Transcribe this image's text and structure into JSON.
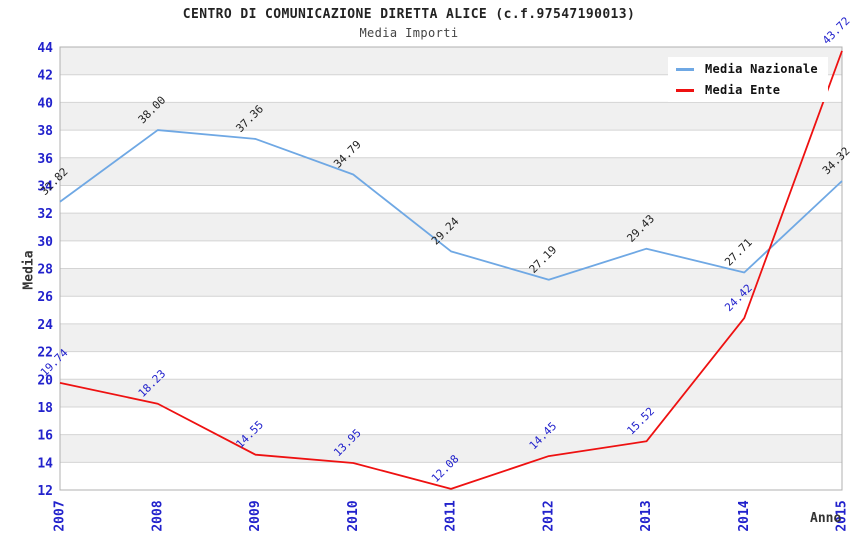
{
  "header": {
    "title": "CENTRO DI COMUNICAZIONE DIRETTA ALICE (c.f.97547190013)",
    "subtitle": "Media Importi"
  },
  "chart_data": {
    "type": "line",
    "title": "CENTRO DI COMUNICAZIONE DIRETTA ALICE (c.f.97547190013)",
    "subtitle": "Media Importi",
    "xlabel": "Anno",
    "ylabel": "Media",
    "categories": [
      "2007",
      "2008",
      "2009",
      "2010",
      "2011",
      "2012",
      "2013",
      "2014",
      "2015"
    ],
    "series": [
      {
        "name": "Media Nazionale",
        "color": "#6fa8e4",
        "label_color": "#222222",
        "values": [
          32.82,
          38.0,
          37.36,
          34.79,
          29.24,
          27.19,
          29.43,
          27.71,
          34.32
        ]
      },
      {
        "name": "Media Ente",
        "color": "#ee1111",
        "label_color": "#2222cc",
        "values": [
          19.74,
          18.23,
          14.55,
          13.95,
          12.08,
          14.45,
          15.52,
          24.42,
          43.72
        ]
      }
    ],
    "ylim": [
      12,
      44
    ],
    "ytick_step": 2,
    "grid": "horizontal",
    "legend_position": "top-right",
    "tick_color": "#2222cc",
    "stripe_colors": [
      "#ffffff",
      "#f0f0f0"
    ],
    "gridline_color": "#d4d4d4",
    "plot_border_color": "#b0b0b0"
  }
}
